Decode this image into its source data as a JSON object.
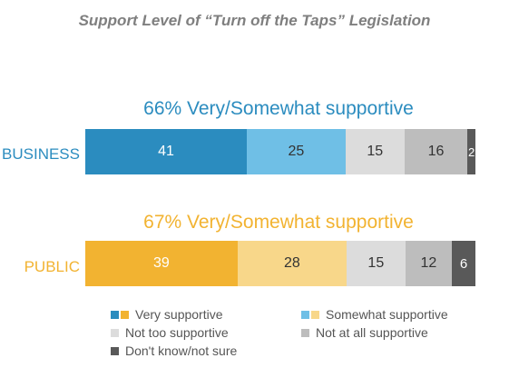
{
  "chart_data": {
    "type": "bar",
    "orientation": "horizontal",
    "stacked": true,
    "title": "Support Level of “Turn off the Taps” Legislation",
    "categories": [
      "BUSINESS",
      "PUBLIC"
    ],
    "headlines": [
      "66% Very/Somewhat supportive",
      "67% Very/Somewhat supportive"
    ],
    "series": [
      {
        "name": "Very supportive",
        "values": [
          41,
          39
        ]
      },
      {
        "name": "Somewhat supportive",
        "values": [
          25,
          28
        ]
      },
      {
        "name": "Not too supportive",
        "values": [
          15,
          15
        ]
      },
      {
        "name": "Not at all supportive",
        "values": [
          16,
          12
        ]
      },
      {
        "name": "Don't know/not sure",
        "values": [
          2,
          6
        ]
      }
    ],
    "colors": {
      "BUSINESS": [
        "#2b8cbf",
        "#6fbfe6",
        "#dcdcdc",
        "#bdbdbd",
        "#595959"
      ],
      "PUBLIC": [
        "#f2b331",
        "#f8d78a",
        "#dcdcdc",
        "#bdbdbd",
        "#595959"
      ]
    },
    "legend": [
      {
        "label": "Very supportive",
        "swatches": [
          "#2b8cbf",
          "#f2b331"
        ]
      },
      {
        "label": "Somewhat supportive",
        "swatches": [
          "#6fbfe6",
          "#f8d78a"
        ]
      },
      {
        "label": "Not too supportive",
        "swatches": [
          "#dcdcdc"
        ]
      },
      {
        "label": "Not at all supportive",
        "swatches": [
          "#bdbdbd"
        ]
      },
      {
        "label": "Don't know/not sure",
        "swatches": [
          "#595959"
        ]
      }
    ],
    "legend_position": "bottom",
    "grid": false
  }
}
